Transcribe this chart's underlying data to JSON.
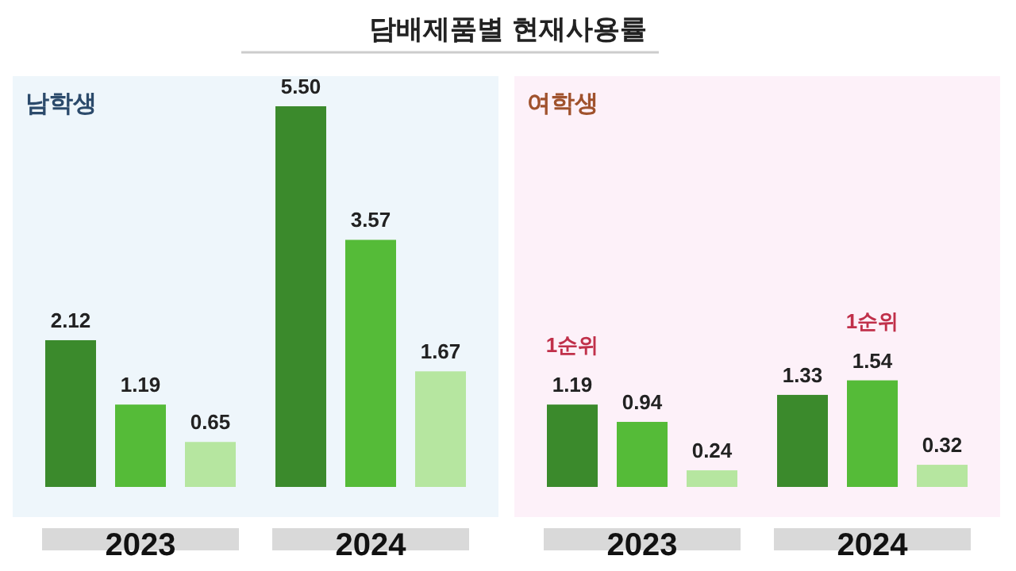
{
  "chart_data": [
    {
      "type": "bar",
      "title": "담배제품별 현재사용률",
      "subtitle": "남학생",
      "categories": [
        "2023",
        "2024"
      ],
      "series": [
        {
          "color": "#3b8a2c",
          "values": [
            2.12,
            5.5
          ],
          "value_labels": [
            "2.12",
            "5.50"
          ]
        },
        {
          "color": "#55bb38",
          "values": [
            1.19,
            3.57
          ],
          "value_labels": [
            "1.19",
            "3.57"
          ]
        },
        {
          "color": "#b6e6a0",
          "values": [
            0.65,
            1.67
          ],
          "value_labels": [
            "0.65",
            "1.67"
          ]
        }
      ]
    },
    {
      "type": "bar",
      "subtitle": "여학생",
      "categories": [
        "2023",
        "2024"
      ],
      "annotations": [
        "1순위",
        "1순위"
      ],
      "series": [
        {
          "color": "#3b8a2c",
          "values": [
            1.19,
            1.33
          ],
          "value_labels": [
            "1.19",
            "1.33"
          ]
        },
        {
          "color": "#55bb38",
          "values": [
            0.94,
            1.54
          ],
          "value_labels": [
            "0.94",
            "1.54"
          ]
        },
        {
          "color": "#b6e6a0",
          "values": [
            0.24,
            0.32
          ],
          "value_labels": [
            "0.24",
            "0.32"
          ]
        }
      ]
    }
  ]
}
